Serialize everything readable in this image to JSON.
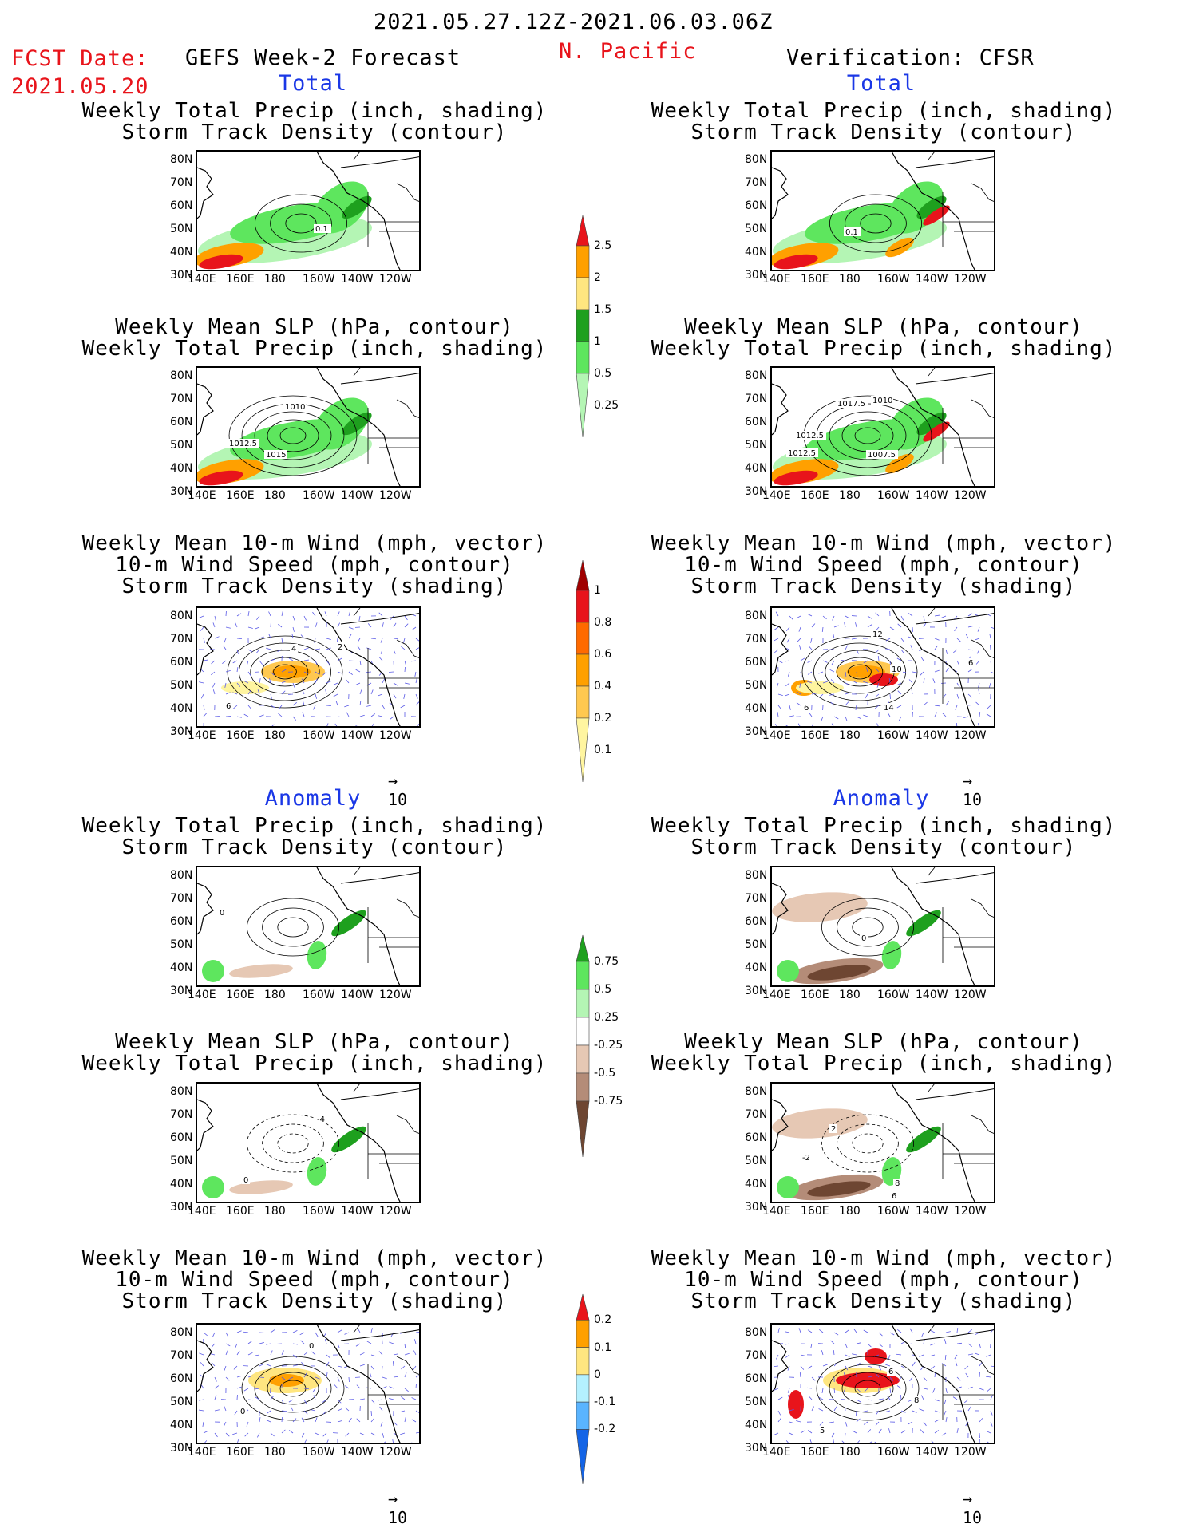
{
  "header": {
    "date_range": "2021.05.27.12Z-2021.06.03.06Z",
    "fcst_label": "FCST Date:",
    "fcst_date": "2021.05.20",
    "left_title": "GEFS Week-2 Forecast",
    "region": "N. Pacific",
    "right_title": "Verification: CFSR"
  },
  "sections": {
    "total": "Total",
    "anomaly": "Anomaly"
  },
  "panel_titles": {
    "precip_storm": [
      "Weekly Total Precip (inch, shading)",
      "Storm Track Density (contour)"
    ],
    "slp_precip": [
      "Weekly Mean SLP (hPa, contour)",
      "Weekly Total Precip (inch, shading)"
    ],
    "wind_storm": [
      "Weekly Mean 10-m Wind (mph, vector)",
      "10-m Wind Speed (mph, contour)",
      "Storm Track Density (shading)"
    ]
  },
  "axes": {
    "lat_ticks": [
      "80N",
      "70N",
      "60N",
      "50N",
      "40N",
      "30N"
    ],
    "lon_ticks": [
      "140E",
      "160E",
      "180",
      "160W",
      "140W",
      "120W"
    ]
  },
  "vector_reference": "10",
  "colorbars": {
    "precip_total": {
      "labels": [
        "2.5",
        "2",
        "1.5",
        "1",
        "0.5",
        "0.25"
      ],
      "colors": [
        "#e8141b",
        "#ffa000",
        "#ffe680",
        "#1ea01e",
        "#5ee65e",
        "#b4f5b4"
      ]
    },
    "storm_total": {
      "labels": [
        "1",
        "0.8",
        "0.6",
        "0.4",
        "0.2",
        "0.1"
      ],
      "colors": [
        "#a00000",
        "#e8141b",
        "#ff6a00",
        "#ffa000",
        "#ffc850",
        "#fff5a0"
      ]
    },
    "precip_anom": {
      "labels": [
        "0.75",
        "0.5",
        "0.25",
        "-0.25",
        "-0.5",
        "-0.75"
      ],
      "colors": [
        "#1ea01e",
        "#5ee65e",
        "#b4f5b4",
        "#ffffff",
        "#e6c8b4",
        "#b48c78",
        "#6e4632"
      ]
    },
    "storm_anom": {
      "labels": [
        "0.2",
        "0.1",
        "0",
        "-0.1",
        "-0.2"
      ],
      "colors": [
        "#e8141b",
        "#ffa000",
        "#ffe680",
        "#b4f0ff",
        "#5ab4ff",
        "#1464e6"
      ]
    }
  },
  "contour_labels": {
    "fc_precip": [
      "0.1"
    ],
    "ver_precip": [
      "0.1"
    ],
    "fc_slp": [
      "1010",
      "1012.5",
      "1015"
    ],
    "ver_slp": [
      "1017.5",
      "1010",
      "1012.5",
      "1012.5",
      "1007.5"
    ],
    "fc_wind": [
      "4",
      "2",
      "6"
    ],
    "ver_wind": [
      "12",
      "10",
      "14",
      "6",
      "6"
    ],
    "fc_anom_precip": [
      "0"
    ],
    "ver_anom_precip": [
      "0"
    ],
    "fc_anom_slp": [
      "-4",
      "0"
    ],
    "ver_anom_slp": [
      "2",
      "-2",
      "8",
      "6"
    ],
    "fc_anom_wind": [
      "0",
      "0"
    ],
    "ver_anom_wind": [
      "6",
      "8",
      "5"
    ]
  }
}
